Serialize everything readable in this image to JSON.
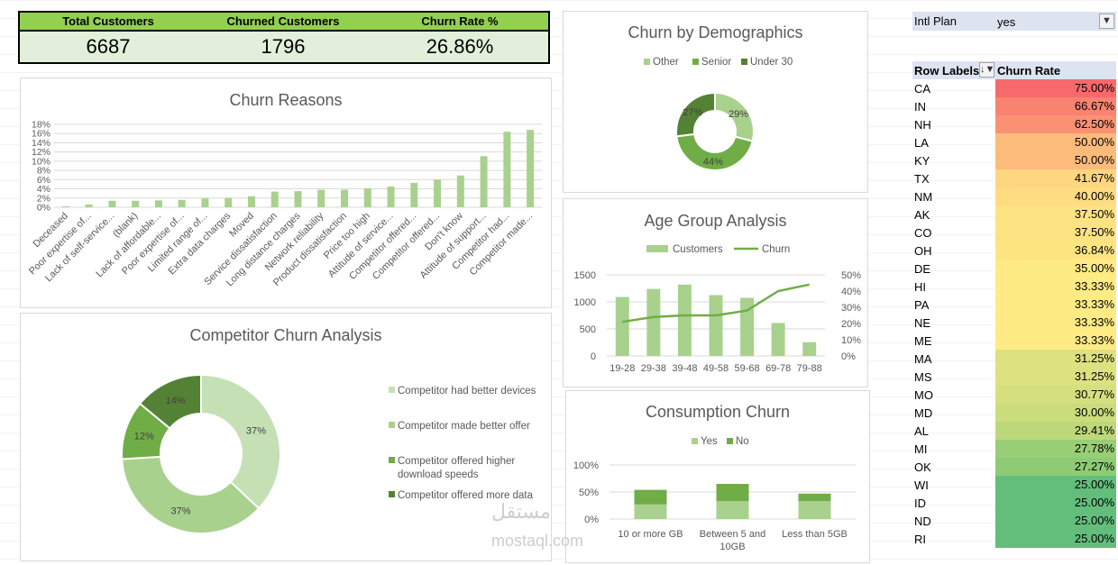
{
  "kpis": [
    {
      "label": "Total Customers",
      "value": "6687"
    },
    {
      "label": "Churned Customers",
      "value": "1796"
    },
    {
      "label": "Churn Rate %",
      "value": "26.86%"
    }
  ],
  "filter": {
    "label": "Intl Plan",
    "value": "yes"
  },
  "pivot": {
    "row_label_header": "Row Labels",
    "value_header": "Churn Rate",
    "rows": [
      {
        "state": "CA",
        "rate": "75.00%",
        "color": "#f8696b"
      },
      {
        "state": "IN",
        "rate": "66.67%",
        "color": "#f98370"
      },
      {
        "state": "NH",
        "rate": "62.50%",
        "color": "#fa9173"
      },
      {
        "state": "LA",
        "rate": "50.00%",
        "color": "#fdbb7b"
      },
      {
        "state": "KY",
        "rate": "50.00%",
        "color": "#fdbb7b"
      },
      {
        "state": "TX",
        "rate": "41.67%",
        "color": "#ffd680"
      },
      {
        "state": "NM",
        "rate": "40.00%",
        "color": "#ffdb81"
      },
      {
        "state": "AK",
        "rate": "37.50%",
        "color": "#fee382"
      },
      {
        "state": "CO",
        "rate": "37.50%",
        "color": "#fee382"
      },
      {
        "state": "OH",
        "rate": "36.84%",
        "color": "#fee582"
      },
      {
        "state": "DE",
        "rate": "35.00%",
        "color": "#feeb84"
      },
      {
        "state": "HI",
        "rate": "33.33%",
        "color": "#ffeb84"
      },
      {
        "state": "PA",
        "rate": "33.33%",
        "color": "#ffeb84"
      },
      {
        "state": "NE",
        "rate": "33.33%",
        "color": "#ffeb84"
      },
      {
        "state": "ME",
        "rate": "33.33%",
        "color": "#ffeb84"
      },
      {
        "state": "MA",
        "rate": "31.25%",
        "color": "#dde17f"
      },
      {
        "state": "MS",
        "rate": "31.25%",
        "color": "#dde17f"
      },
      {
        "state": "MO",
        "rate": "30.77%",
        "color": "#d6df7e"
      },
      {
        "state": "MD",
        "rate": "30.00%",
        "color": "#cbdc7d"
      },
      {
        "state": "AL",
        "rate": "29.41%",
        "color": "#bdd87b"
      },
      {
        "state": "MI",
        "rate": "27.78%",
        "color": "#98ce76"
      },
      {
        "state": "OK",
        "rate": "27.27%",
        "color": "#8dcb75"
      },
      {
        "state": "WI",
        "rate": "25.00%",
        "color": "#63be7b"
      },
      {
        "state": "ID",
        "rate": "25.00%",
        "color": "#63be7b"
      },
      {
        "state": "ND",
        "rate": "25.00%",
        "color": "#63be7b"
      },
      {
        "state": "RI",
        "rate": "25.00%",
        "color": "#63be7b"
      }
    ]
  },
  "watermark": {
    "arabic": "مستقل",
    "latin": "mostaql.com"
  },
  "chart_data": [
    {
      "id": "churn_reasons",
      "type": "bar",
      "title": "Churn Reasons",
      "categories": [
        "Deceased",
        "Poor expertise of...",
        "Lack of self-service...",
        "(blank)",
        "Lack of affordable...",
        "Poor expertise of...",
        "Limited range of...",
        "Extra data charges",
        "Moved",
        "Service dissatisfaction",
        "Long distance charges",
        "Network reliability",
        "Product dissatisfaction",
        "Price too high",
        "Attitude of service...",
        "Competitor offered...",
        "Competitor offered...",
        "Don't know",
        "Attitude of support...",
        "Competitor had...",
        "Competitor made..."
      ],
      "values": [
        0.2,
        0.6,
        1.4,
        1.4,
        1.5,
        1.6,
        1.9,
        2.0,
        2.4,
        3.4,
        3.5,
        3.8,
        3.8,
        4.1,
        4.5,
        5.3,
        6.0,
        6.9,
        11.1,
        16.4,
        16.8
      ],
      "yticks": [
        "0%",
        "2%",
        "4%",
        "6%",
        "8%",
        "10%",
        "12%",
        "14%",
        "16%",
        "18%"
      ],
      "ylim": [
        0,
        18
      ],
      "color": "#a9d18e"
    },
    {
      "id": "churn_demographics",
      "type": "pie",
      "title": "Churn by Demographics",
      "labels": [
        "Other",
        "Senior",
        "Under 30"
      ],
      "values": [
        29,
        44,
        27
      ],
      "value_labels": [
        "29%",
        "44%",
        "27%"
      ],
      "colors": [
        "#a9d18e",
        "#70ad47",
        "#548235"
      ]
    },
    {
      "id": "age_group",
      "type": "bar",
      "title": "Age Group Analysis",
      "categories": [
        "19-28",
        "29-38",
        "39-48",
        "49-58",
        "59-68",
        "69-78",
        "79-88"
      ],
      "series": [
        {
          "name": "Customers",
          "type": "bar",
          "values": [
            1090,
            1240,
            1320,
            1125,
            1075,
            610,
            255
          ],
          "color": "#a9d18e"
        },
        {
          "name": "Churn",
          "type": "line",
          "values": [
            21,
            24,
            25,
            25,
            28,
            40,
            44
          ],
          "color": "#70ad47"
        }
      ],
      "y_left_ticks": [
        "0",
        "500",
        "1000",
        "1500"
      ],
      "y_left_lim": [
        0,
        1500
      ],
      "y_right_ticks": [
        "0%",
        "10%",
        "20%",
        "30%",
        "40%",
        "50%"
      ],
      "y_right_lim": [
        0,
        50
      ]
    },
    {
      "id": "consumption",
      "type": "bar",
      "stacked": true,
      "title": "Consumption Churn",
      "categories": [
        "10 or more GB",
        "Between 5 and 10GB",
        "Less than 5GB"
      ],
      "series": [
        {
          "name": "Yes",
          "values": [
            27,
            33,
            33
          ],
          "color": "#a9d18e"
        },
        {
          "name": "No",
          "values": [
            27,
            32,
            14
          ],
          "color": "#70ad47"
        }
      ],
      "yticks": [
        "0%",
        "50%",
        "100%"
      ],
      "ylim": [
        0,
        100
      ]
    },
    {
      "id": "competitor",
      "type": "pie",
      "title": "Competitor Churn Analysis",
      "labels": [
        "Competitor had better devices",
        "Competitor made better offer",
        "Competitor offered higher download speeds",
        "Competitor offered more data"
      ],
      "values": [
        37,
        37,
        12,
        14
      ],
      "value_labels": [
        "37%",
        "37%",
        "12%",
        "14%"
      ],
      "colors": [
        "#c5e0b4",
        "#a9d18e",
        "#70ad47",
        "#548235"
      ]
    }
  ]
}
